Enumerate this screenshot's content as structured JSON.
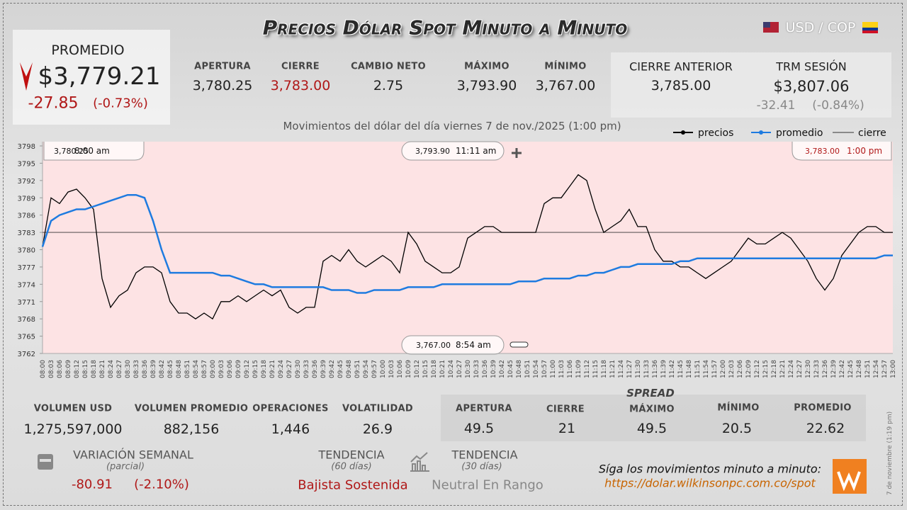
{
  "header": {
    "title": "Precios Dólar Spot Minuto a Minuto",
    "currency": "USD / COP"
  },
  "promedio": {
    "label": "PROMEDIO",
    "value": "$3,779.21",
    "change": "-27.85",
    "change_pct": "(-0.73%)"
  },
  "session": [
    {
      "label": "APERTURA",
      "value": "3,780.25"
    },
    {
      "label": "CIERRE",
      "value": "3,783.00"
    },
    {
      "label": "CAMBIO NETO",
      "value": "2.75"
    },
    {
      "label": "MÁXIMO",
      "value": "3,793.90"
    },
    {
      "label": "MÍNIMO",
      "value": "3,767.00"
    }
  ],
  "previous_close": {
    "label": "CIERRE ANTERIOR",
    "value": "3,785.00"
  },
  "trm": {
    "label": "TRM SESIÓN",
    "value": "$3,807.06",
    "change": "-32.41",
    "change_pct": "(-0.84%)"
  },
  "chart_data": {
    "type": "line",
    "subtitle": "Movimientos del dólar del día viernes 7 de nov./2025 (1:00 pm)",
    "categories": [
      "08:00",
      "08:03",
      "08:06",
      "08:09",
      "08:12",
      "08:15",
      "08:18",
      "08:21",
      "08:24",
      "08:27",
      "08:30",
      "08:33",
      "08:36",
      "08:39",
      "08:42",
      "08:45",
      "08:48",
      "08:51",
      "08:54",
      "08:57",
      "09:00",
      "09:03",
      "09:06",
      "09:09",
      "09:12",
      "09:15",
      "09:18",
      "09:21",
      "09:24",
      "09:27",
      "09:30",
      "09:33",
      "09:36",
      "09:39",
      "09:42",
      "09:45",
      "09:48",
      "09:51",
      "09:54",
      "09:57",
      "10:00",
      "10:03",
      "10:06",
      "10:09",
      "10:12",
      "10:15",
      "10:18",
      "10:21",
      "10:24",
      "10:27",
      "10:30",
      "10:33",
      "10:36",
      "10:39",
      "10:42",
      "10:45",
      "10:48",
      "10:51",
      "10:54",
      "10:57",
      "11:00",
      "11:03",
      "11:06",
      "11:09",
      "11:12",
      "11:15",
      "11:18",
      "11:21",
      "11:24",
      "11:27",
      "11:30",
      "11:33",
      "11:36",
      "11:39",
      "11:42",
      "11:45",
      "11:48",
      "11:51",
      "11:54",
      "11:57",
      "12:00",
      "12:03",
      "12:06",
      "12:09",
      "12:12",
      "12:15",
      "12:18",
      "12:21",
      "12:24",
      "12:27",
      "12:30",
      "12:33",
      "12:36",
      "12:39",
      "12:42",
      "12:45",
      "12:48",
      "12:51",
      "12:54",
      "12:57",
      "13:00"
    ],
    "series": [
      {
        "name": "precios",
        "color": "#000000",
        "values": [
          3780.5,
          3789,
          3788,
          3790,
          3790.5,
          3789,
          3787,
          3775,
          3770,
          3772,
          3773,
          3776,
          3777,
          3777,
          3776,
          3771,
          3769,
          3769,
          3768,
          3769,
          3768,
          3771,
          3771,
          3772,
          3771,
          3772,
          3773,
          3772,
          3773,
          3770,
          3769,
          3770,
          3770,
          3778,
          3779,
          3778,
          3780,
          3778,
          3777,
          3778,
          3779,
          3778,
          3776,
          3783,
          3781,
          3778,
          3777,
          3776,
          3776,
          3777,
          3782,
          3783,
          3784,
          3784,
          3783,
          3783,
          3783,
          3783,
          3783,
          3788,
          3789,
          3789,
          3791,
          3793,
          3792,
          3787,
          3783,
          3784,
          3785,
          3787,
          3784,
          3784,
          3780,
          3778,
          3778,
          3777,
          3777,
          3776,
          3775,
          3776,
          3777,
          3778,
          3780,
          3782,
          3781,
          3781,
          3782,
          3783,
          3782,
          3780,
          3778,
          3775,
          3773,
          3775,
          3779,
          3781,
          3783,
          3784,
          3784,
          3783,
          3783
        ]
      },
      {
        "name": "promedio",
        "color": "#1e7be0",
        "values": [
          3780.5,
          3785,
          3786,
          3786.5,
          3787,
          3787,
          3787.5,
          3788,
          3788.5,
          3789,
          3789.5,
          3789.5,
          3789,
          3785,
          3780,
          3776,
          3776,
          3776,
          3776,
          3776,
          3776,
          3775.5,
          3775.5,
          3775,
          3774.5,
          3774,
          3774,
          3773.5,
          3773.5,
          3773.5,
          3773.5,
          3773.5,
          3773.5,
          3773.5,
          3773,
          3773,
          3773,
          3772.5,
          3772.5,
          3773,
          3773,
          3773,
          3773,
          3773.5,
          3773.5,
          3773.5,
          3773.5,
          3774,
          3774,
          3774,
          3774,
          3774,
          3774,
          3774,
          3774,
          3774,
          3774.5,
          3774.5,
          3774.5,
          3775,
          3775,
          3775,
          3775,
          3775.5,
          3775.5,
          3776,
          3776,
          3776.5,
          3777,
          3777,
          3777.5,
          3777.5,
          3777.5,
          3777.5,
          3777.5,
          3778,
          3778,
          3778.5,
          3778.5,
          3778.5,
          3778.5,
          3778.5,
          3778.5,
          3778.5,
          3778.5,
          3778.5,
          3778.5,
          3778.5,
          3778.5,
          3778.5,
          3778.5,
          3778.5,
          3778.5,
          3778.5,
          3778.5,
          3778.5,
          3778.5,
          3778.5,
          3778.5,
          3779,
          3779
        ]
      }
    ],
    "reference_line": {
      "name": "cierre",
      "value": 3783,
      "color": "#333333"
    },
    "ylim": [
      3762,
      3798
    ],
    "yticks": [
      3762,
      3765,
      3768,
      3771,
      3774,
      3777,
      3780,
      3783,
      3786,
      3789,
      3792,
      3795,
      3798
    ],
    "annotations": [
      {
        "value": "3,780.25",
        "time": "8:00 am"
      },
      {
        "value": "3,793.90",
        "time": "11:11 am"
      },
      {
        "value": "3,783.00",
        "time": "1:00 pm"
      },
      {
        "value": "3,767.00",
        "time": "8:54 am"
      }
    ]
  },
  "volume": [
    {
      "label": "VOLUMEN USD",
      "value": "1,275,597,000"
    },
    {
      "label": "VOLUMEN PROMEDIO",
      "value": "882,156"
    },
    {
      "label": "OPERACIONES",
      "value": "1,446"
    },
    {
      "label": "VOLATILIDAD",
      "value": "26.9"
    }
  ],
  "spread": {
    "title": "SPREAD",
    "items": [
      {
        "label": "APERTURA",
        "value": "49.5"
      },
      {
        "label": "CIERRE",
        "value": "21"
      },
      {
        "label": "MÁXIMO",
        "value": "49.5"
      },
      {
        "label": "MÍNIMO",
        "value": "20.5"
      },
      {
        "label": "PROMEDIO",
        "value": "22.62"
      }
    ]
  },
  "weekly": {
    "label": "VARIACIÓN SEMANAL",
    "note": "(parcial)",
    "change": "-80.91",
    "change_pct": "(-2.10%)"
  },
  "trend60": {
    "label": "TENDENCIA",
    "note": "(60 días)",
    "value": "Bajista Sostenida"
  },
  "trend30": {
    "label": "TENDENCIA",
    "note": "(30 días)",
    "value": "Neutral En Rango"
  },
  "footer": {
    "text": "Síga los movimientos minuto a minuto:",
    "url": "https://dolar.wilkinsonpc.com.co/spot",
    "stamp": "7 de noviembre (1:19 pm)"
  }
}
